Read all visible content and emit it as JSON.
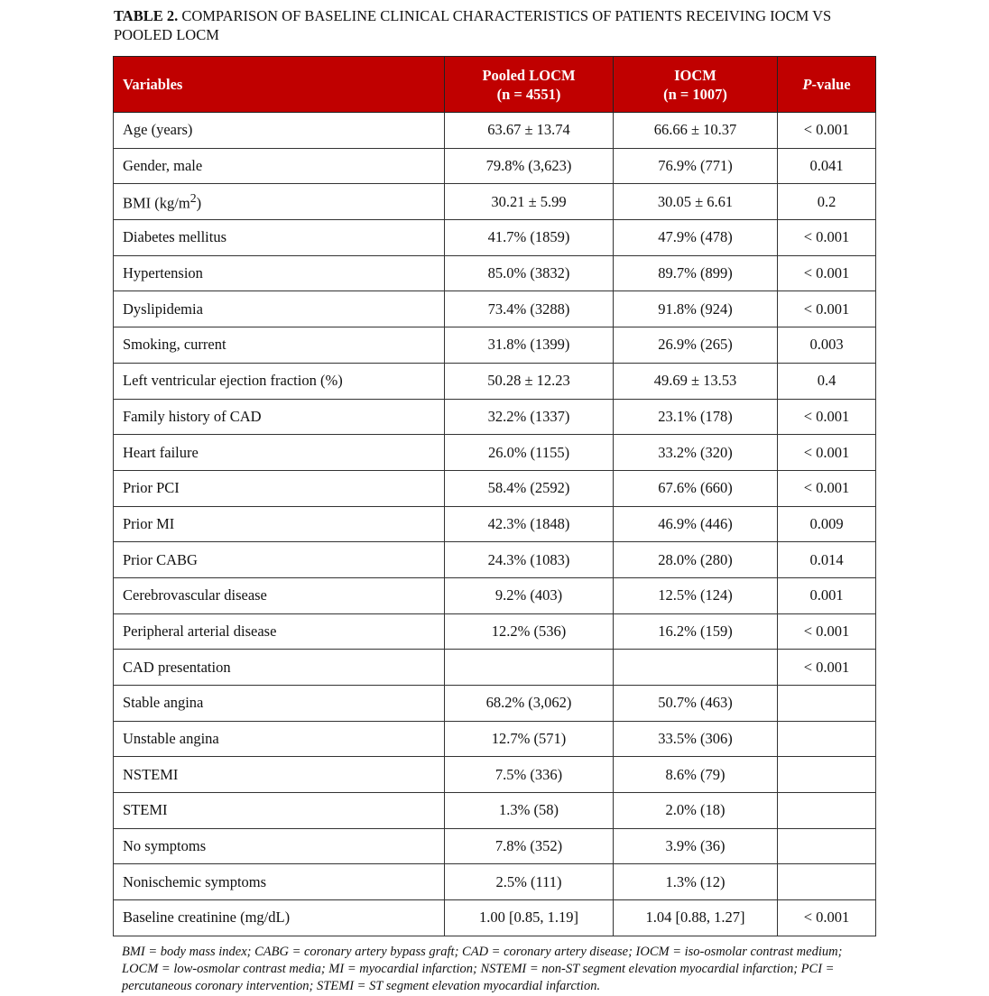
{
  "title": {
    "label": "TABLE 2.",
    "text": "COMPARISON OF BASELINE CLINICAL CHARACTERISTICS OF PATIENTS RECEIVING IOCM VS POOLED LOCM"
  },
  "header": {
    "variables": "Variables",
    "pooled": "Pooled LOCM",
    "pooled_n": "(n = 4551)",
    "iocm": "IOCM",
    "iocm_n": "(n = 1007)",
    "p_italic": "P",
    "p_rest": "-value"
  },
  "colors": {
    "header_bg": "#c00000"
  },
  "rows": [
    {
      "variable": "Age (years)",
      "pooled": "63.67 ± 13.74",
      "iocm": "66.66 ± 10.37",
      "p": "< 0.001"
    },
    {
      "variable": "Gender, male",
      "pooled": "79.8% (3,623)",
      "iocm": "76.9% (771)",
      "p": "0.041"
    },
    {
      "variable": "BMI (kg/m",
      "sup": "2",
      "suffix": ")",
      "pooled": "30.21 ± 5.99",
      "iocm": "30.05 ± 6.61",
      "p": "0.2"
    },
    {
      "variable": "Diabetes mellitus",
      "pooled": "41.7% (1859)",
      "iocm": "47.9% (478)",
      "p": "< 0.001"
    },
    {
      "variable": "Hypertension",
      "pooled": "85.0% (3832)",
      "iocm": "89.7% (899)",
      "p": "< 0.001"
    },
    {
      "variable": "Dyslipidemia",
      "pooled": "73.4% (3288)",
      "iocm": "91.8% (924)",
      "p": "< 0.001"
    },
    {
      "variable": "Smoking, current",
      "pooled": "31.8% (1399)",
      "iocm": "26.9% (265)",
      "p": "0.003"
    },
    {
      "variable": "Left ventricular ejection fraction (%)",
      "pooled": "50.28 ± 12.23",
      "iocm": "49.69 ± 13.53",
      "p": "0.4"
    },
    {
      "variable": "Family history of CAD",
      "pooled": "32.2% (1337)",
      "iocm": "23.1% (178)",
      "p": "< 0.001"
    },
    {
      "variable": "Heart failure",
      "pooled": "26.0% (1155)",
      "iocm": "33.2% (320)",
      "p": "< 0.001"
    },
    {
      "variable": "Prior PCI",
      "pooled": "58.4% (2592)",
      "iocm": "67.6% (660)",
      "p": "< 0.001"
    },
    {
      "variable": "Prior MI",
      "pooled": "42.3% (1848)",
      "iocm": "46.9% (446)",
      "p": "0.009"
    },
    {
      "variable": "Prior CABG",
      "pooled": "24.3% (1083)",
      "iocm": "28.0% (280)",
      "p": "0.014"
    },
    {
      "variable": "Cerebrovascular disease",
      "pooled": "9.2% (403)",
      "iocm": "12.5% (124)",
      "p": "0.001"
    },
    {
      "variable": "Peripheral arterial disease",
      "pooled": "12.2% (536)",
      "iocm": "16.2% (159)",
      "p": "< 0.001"
    },
    {
      "variable": "CAD presentation",
      "pooled": "",
      "iocm": "",
      "p": "< 0.001"
    },
    {
      "variable": "Stable angina",
      "pooled": "68.2% (3,062)",
      "iocm": "50.7% (463)",
      "p": ""
    },
    {
      "variable": "Unstable angina",
      "pooled": "12.7% (571)",
      "iocm": "33.5% (306)",
      "p": ""
    },
    {
      "variable": "NSTEMI",
      "pooled": "7.5% (336)",
      "iocm": "8.6% (79)",
      "p": ""
    },
    {
      "variable": "STEMI",
      "pooled": "1.3% (58)",
      "iocm": "2.0% (18)",
      "p": ""
    },
    {
      "variable": "No symptoms",
      "pooled": "7.8% (352)",
      "iocm": "3.9% (36)",
      "p": ""
    },
    {
      "variable": "Nonischemic symptoms",
      "pooled": "2.5% (111)",
      "iocm": "1.3% (12)",
      "p": ""
    },
    {
      "variable": "Baseline creatinine (mg/dL)",
      "pooled": "1.00 [0.85, 1.19]",
      "iocm": "1.04 [0.88, 1.27]",
      "p": "< 0.001"
    }
  ],
  "footnote": "BMI = body mass index; CABG = coronary artery bypass graft; CAD = coronary artery disease; IOCM = iso-osmolar contrast medium; LOCM = low-osmolar contrast media; MI = myocardial infarction; NSTEMI = non-ST segment elevation myocardial infarction; PCI = percutaneous coronary intervention; STEMI = ST segment elevation myocardial infarction."
}
